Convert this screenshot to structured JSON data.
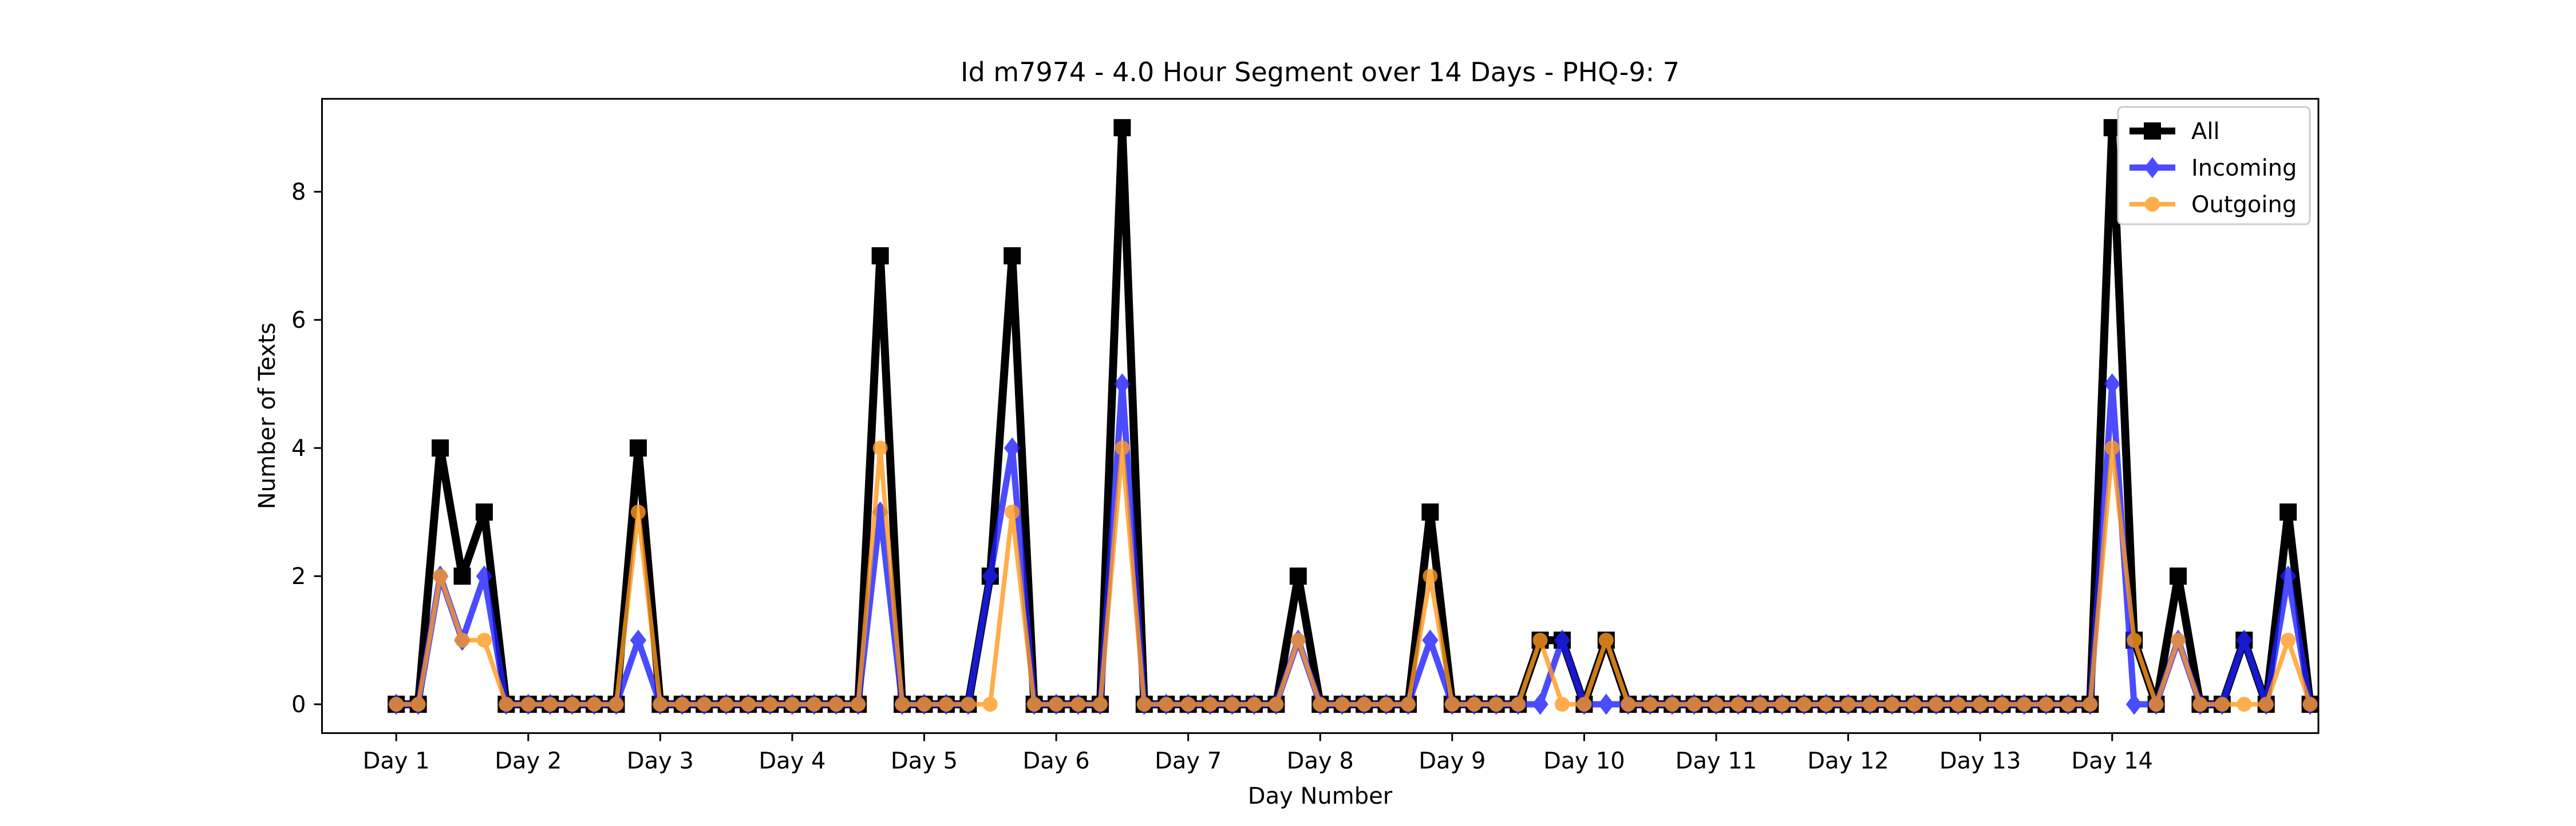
{
  "chart_data": {
    "type": "line",
    "title": "Id m7974 - 4.0 Hour Segment over 14 Days - PHQ-9: 7",
    "xlabel": "Day Number",
    "ylabel": "Number of Texts",
    "x_tick_labels": [
      "Day 1",
      "Day 2",
      "Day 3",
      "Day 4",
      "Day 5",
      "Day 6",
      "Day 7",
      "Day 8",
      "Day 9",
      "Day 10",
      "Day 11",
      "Day 12",
      "Day 13",
      "Day 14"
    ],
    "y_ticks": [
      0,
      2,
      4,
      6,
      8
    ],
    "ylim": [
      -0.45,
      9.45
    ],
    "xlim_days": [
      0.4375,
      15.5625
    ],
    "grid": false,
    "legend_position": "top-right",
    "segments_per_day": 6,
    "first_segment_day": 1,
    "series": [
      {
        "name": "All",
        "color": "#000000",
        "marker": "square",
        "values": [
          0,
          0,
          4,
          2,
          3,
          0,
          0,
          0,
          0,
          0,
          0,
          4,
          0,
          0,
          0,
          0,
          0,
          0,
          0,
          0,
          0,
          0,
          7,
          0,
          0,
          0,
          0,
          2,
          7,
          0,
          0,
          0,
          0,
          9,
          0,
          0,
          0,
          0,
          0,
          0,
          0,
          2,
          0,
          0,
          0,
          0,
          0,
          3,
          0,
          0,
          0,
          0,
          1,
          1,
          0,
          1,
          0,
          0,
          0,
          0,
          0,
          0,
          0,
          0,
          0,
          0,
          0,
          0,
          0,
          0,
          0,
          0,
          0,
          0,
          0,
          0,
          0,
          0,
          9,
          1,
          0,
          2,
          0,
          0,
          1,
          0,
          3,
          0
        ]
      },
      {
        "name": "Incoming",
        "color": "#1f1fff",
        "marker": "diamond",
        "values": [
          0,
          0,
          2,
          1,
          2,
          0,
          0,
          0,
          0,
          0,
          0,
          1,
          0,
          0,
          0,
          0,
          0,
          0,
          0,
          0,
          0,
          0,
          3,
          0,
          0,
          0,
          0,
          2,
          4,
          0,
          0,
          0,
          0,
          5,
          0,
          0,
          0,
          0,
          0,
          0,
          0,
          1,
          0,
          0,
          0,
          0,
          0,
          1,
          0,
          0,
          0,
          0,
          0,
          1,
          0,
          0,
          0,
          0,
          0,
          0,
          0,
          0,
          0,
          0,
          0,
          0,
          0,
          0,
          0,
          0,
          0,
          0,
          0,
          0,
          0,
          0,
          0,
          0,
          5,
          0,
          0,
          1,
          0,
          0,
          1,
          0,
          2,
          0
        ]
      },
      {
        "name": "Outgoing",
        "color": "#ff9a1f",
        "marker": "circle",
        "values": [
          0,
          0,
          2,
          1,
          1,
          0,
          0,
          0,
          0,
          0,
          0,
          3,
          0,
          0,
          0,
          0,
          0,
          0,
          0,
          0,
          0,
          0,
          4,
          0,
          0,
          0,
          0,
          0,
          3,
          0,
          0,
          0,
          0,
          4,
          0,
          0,
          0,
          0,
          0,
          0,
          0,
          1,
          0,
          0,
          0,
          0,
          0,
          2,
          0,
          0,
          0,
          0,
          1,
          0,
          0,
          1,
          0,
          0,
          0,
          0,
          0,
          0,
          0,
          0,
          0,
          0,
          0,
          0,
          0,
          0,
          0,
          0,
          0,
          0,
          0,
          0,
          0,
          0,
          4,
          1,
          0,
          1,
          0,
          0,
          0,
          0,
          1,
          0
        ]
      }
    ]
  }
}
